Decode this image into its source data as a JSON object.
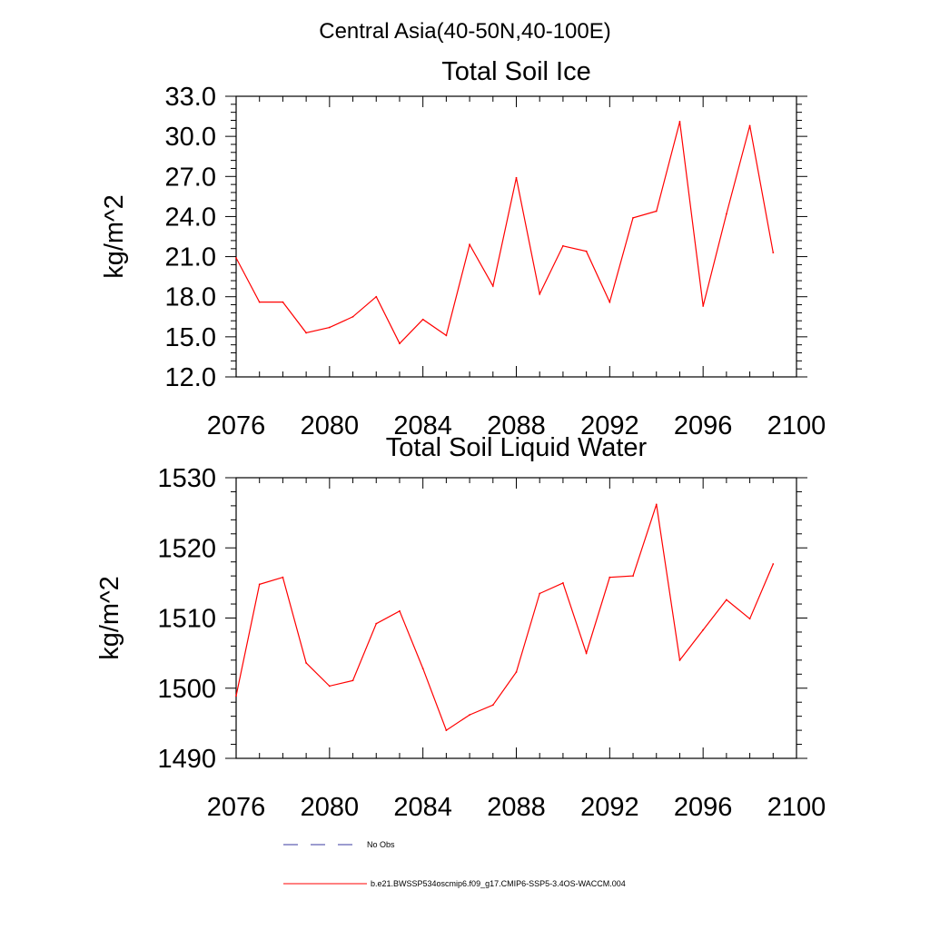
{
  "figure": {
    "suptitle": "Central Asia(40-50N,40-100E)"
  },
  "colors": {
    "model_line": "#ff0000",
    "obs_line": "#3a3aa0",
    "axes": "#000000"
  },
  "chart_data": [
    {
      "type": "line",
      "title": "Total Soil Ice",
      "xlabel": "",
      "ylabel": "kg/m^2",
      "xlim": [
        2076,
        2100
      ],
      "ylim": [
        12.0,
        33.0
      ],
      "x_ticks": [
        2076,
        2080,
        2084,
        2088,
        2092,
        2096,
        2100
      ],
      "x_tick_labels": [
        "2076",
        "2080",
        "2084",
        "2088",
        "2092",
        "2096",
        "2100"
      ],
      "y_ticks": [
        12.0,
        15.0,
        18.0,
        21.0,
        24.0,
        27.0,
        30.0,
        33.0
      ],
      "y_tick_labels": [
        "12.0",
        "15.0",
        "18.0",
        "21.0",
        "24.0",
        "27.0",
        "30.0",
        "33.0"
      ],
      "x": [
        2076,
        2077,
        2078,
        2079,
        2080,
        2081,
        2082,
        2083,
        2084,
        2085,
        2086,
        2087,
        2088,
        2089,
        2090,
        2091,
        2092,
        2093,
        2094,
        2095,
        2096,
        2097,
        2098,
        2099
      ],
      "series": [
        {
          "name": "b.e21.BWSSP534oscmip6.f09_g17.CMIP6-SSP5-3.4OS-WACCM.004",
          "values": [
            20.9,
            17.6,
            17.6,
            15.3,
            15.7,
            16.5,
            18.0,
            14.5,
            16.3,
            15.1,
            21.9,
            18.8,
            26.9,
            18.2,
            21.8,
            21.4,
            17.6,
            23.9,
            24.4,
            31.1,
            17.3,
            24.2,
            30.8,
            21.3
          ]
        }
      ]
    },
    {
      "type": "line",
      "title": "Total Soil Liquid Water",
      "xlabel": "",
      "ylabel": "kg/m^2",
      "xlim": [
        2076,
        2100
      ],
      "ylim": [
        1490,
        1530
      ],
      "x_ticks": [
        2076,
        2080,
        2084,
        2088,
        2092,
        2096,
        2100
      ],
      "x_tick_labels": [
        "2076",
        "2080",
        "2084",
        "2088",
        "2092",
        "2096",
        "2100"
      ],
      "y_ticks": [
        1490,
        1500,
        1510,
        1520,
        1530
      ],
      "y_tick_labels": [
        "1490",
        "1500",
        "1510",
        "1520",
        "1530"
      ],
      "x": [
        2076,
        2077,
        2078,
        2079,
        2080,
        2081,
        2082,
        2083,
        2084,
        2085,
        2086,
        2087,
        2088,
        2089,
        2090,
        2091,
        2092,
        2093,
        2094,
        2095,
        2096,
        2097,
        2098,
        2099
      ],
      "series": [
        {
          "name": "b.e21.BWSSP534oscmip6.f09_g17.CMIP6-SSP5-3.4OS-WACCM.004",
          "values": [
            1498.9,
            1514.8,
            1515.8,
            1503.6,
            1500.3,
            1501.1,
            1509.2,
            1511.0,
            1502.8,
            1494.0,
            1496.2,
            1497.6,
            1502.3,
            1513.5,
            1515.0,
            1505.0,
            1515.8,
            1516.0,
            1526.2,
            1504.0,
            1508.3,
            1512.6,
            1509.9,
            1517.7
          ]
        }
      ]
    }
  ],
  "legend": {
    "items": [
      {
        "label": "No Obs",
        "style": "dashed"
      },
      {
        "label": "b.e21.BWSSP534oscmip6.f09_g17.CMIP6-SSP5-3.4OS-WACCM.004",
        "style": "solid"
      }
    ]
  }
}
